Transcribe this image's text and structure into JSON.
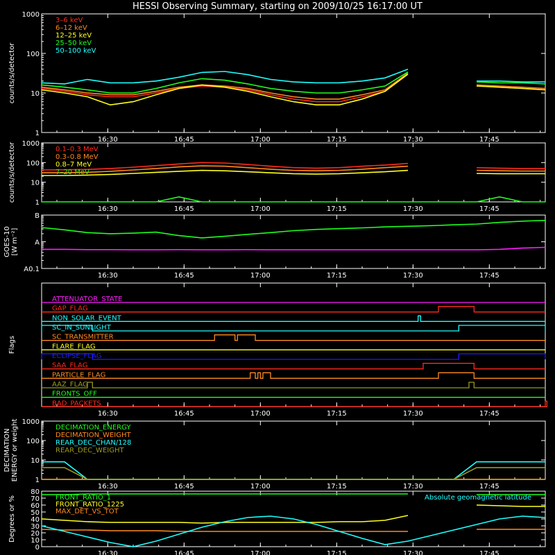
{
  "title": "HESSI Observing Summary, starting on 2009/10/25 16:17:00 UT",
  "time_ticks": [
    "16:30",
    "16:45",
    "17:00",
    "17:15",
    "17:30",
    "17:45"
  ],
  "colors": {
    "bg": "#000000",
    "axis": "#ffffff",
    "red": "#ff2a1a",
    "orange": "#ff8a1e",
    "yellow": "#ffff1e",
    "green": "#1eff1e",
    "cyan": "#1effff",
    "magenta": "#ff1eff",
    "blue": "#1e1eff",
    "olive": "#9a9a1e"
  },
  "chart_data": [
    {
      "name": "low-energy-rates",
      "type": "line",
      "ylabel": "counts/s/detector",
      "ylog": true,
      "ylim": [
        1,
        1000
      ],
      "yticks": [
        "1",
        "10",
        "100",
        "1000"
      ],
      "time_range": [
        "16:17:00",
        "17:56:00"
      ],
      "gap": [
        "17:35",
        "17:42"
      ],
      "series": [
        {
          "name": "3–6 keV",
          "color": "#ff2a1a",
          "values": [
            13,
            11,
            9,
            8,
            8,
            10,
            13,
            15,
            14,
            12,
            9,
            7,
            6,
            6,
            8,
            11,
            30,
            null,
            null,
            15,
            14,
            13,
            12
          ]
        },
        {
          "name": "6–12 keV",
          "color": "#ff8a1e",
          "values": [
            14,
            12,
            10,
            9,
            9,
            11,
            14,
            16,
            15,
            13,
            10,
            8,
            7,
            7,
            9,
            12,
            32,
            null,
            null,
            16,
            15,
            14,
            13
          ]
        },
        {
          "name": "12–25 keV",
          "color": "#ffff1e",
          "values": [
            12,
            10,
            8,
            5,
            6,
            9,
            13,
            16,
            14,
            11,
            8,
            6,
            5,
            5,
            7,
            11,
            30,
            null,
            null,
            15,
            14,
            13,
            12
          ]
        },
        {
          "name": "25–50 keV",
          "color": "#1eff1e",
          "values": [
            16,
            14,
            12,
            10,
            10,
            13,
            18,
            23,
            21,
            17,
            13,
            11,
            10,
            10,
            12,
            15,
            34,
            null,
            null,
            19,
            18,
            18,
            17
          ]
        },
        {
          "name": "50–100 keV",
          "color": "#1effff",
          "values": [
            18,
            17,
            22,
            18,
            18,
            20,
            25,
            33,
            35,
            29,
            22,
            19,
            18,
            18,
            20,
            24,
            40,
            null,
            null,
            20,
            20,
            19,
            19
          ]
        }
      ]
    },
    {
      "name": "high-energy-rates",
      "type": "line",
      "ylabel": "counts/s/detector",
      "ylog": true,
      "ylim": [
        1,
        1000
      ],
      "yticks": [
        "1",
        "10",
        "100",
        "1000"
      ],
      "time_range": [
        "16:17:00",
        "17:56:00"
      ],
      "gap": [
        "17:35",
        "17:42"
      ],
      "series": [
        {
          "name": "0.1–0.3 MeV",
          "color": "#ff2a1a",
          "values": [
            42,
            43,
            45,
            50,
            58,
            70,
            85,
            100,
            95,
            80,
            65,
            55,
            52,
            55,
            65,
            75,
            90,
            null,
            null,
            55,
            52,
            50,
            50
          ]
        },
        {
          "name": "0.3–0.8 MeV",
          "color": "#ff8a1e",
          "values": [
            30,
            30,
            32,
            36,
            42,
            50,
            60,
            68,
            65,
            55,
            46,
            40,
            38,
            40,
            46,
            55,
            65,
            null,
            null,
            40,
            38,
            37,
            37
          ]
        },
        {
          "name": "0.8–7 MeV",
          "color": "#ffff1e",
          "values": [
            22,
            22,
            23,
            25,
            28,
            32,
            36,
            40,
            38,
            34,
            30,
            27,
            26,
            27,
            30,
            34,
            40,
            null,
            null,
            28,
            27,
            27,
            27
          ]
        },
        {
          "name": "7–20 MeV",
          "color": "#1eff1e",
          "values": [
            1,
            1,
            1,
            1,
            1,
            1,
            1.8,
            1,
            1,
            1,
            1,
            1,
            1,
            1,
            1,
            1,
            1,
            1,
            1,
            1,
            1.8,
            1,
            1
          ]
        }
      ]
    },
    {
      "name": "goes",
      "type": "line",
      "ylabel": "GOES-10",
      "ylabel2": "[W m⁻²]",
      "ylog": true,
      "ylim": [
        0.1,
        10
      ],
      "yticks": [
        "A0.1",
        "A",
        "B"
      ],
      "time_range": [
        "16:17:00",
        "17:56:00"
      ],
      "series": [
        {
          "name": "GOES long",
          "color": "#1eff1e",
          "values": [
            3.4,
            2.8,
            2.2,
            2.0,
            2.1,
            2.3,
            1.7,
            1.4,
            1.6,
            1.9,
            2.2,
            2.6,
            2.9,
            3.1,
            3.3,
            3.6,
            3.8,
            4.0,
            4.3,
            4.6,
            5.3,
            5.9,
            6.3
          ]
        },
        {
          "name": "GOES short",
          "color": "#ff1eff",
          "values": [
            0.52,
            0.52,
            0.51,
            0.51,
            0.5,
            0.5,
            0.51,
            0.5,
            0.5,
            0.51,
            0.5,
            0.5,
            0.5,
            0.5,
            0.5,
            0.5,
            0.5,
            0.5,
            0.5,
            0.5,
            0.52,
            0.58,
            0.62
          ]
        }
      ]
    },
    {
      "name": "flags",
      "type": "line",
      "ylabel": "Flags",
      "time_range": [
        "16:17:00",
        "17:56:00"
      ],
      "series": [
        {
          "name": "ATTENUATOR_STATE",
          "color": "#ff1eff",
          "on": []
        },
        {
          "name": "GAP_FLAG",
          "color": "#ff2a1a",
          "on": [
            [
              "17:35",
              "17:42"
            ]
          ]
        },
        {
          "name": "NON_SOLAR_EVENT",
          "color": "#1effff",
          "on": [
            [
              "17:31",
              "17:31:30"
            ]
          ]
        },
        {
          "name": "SC_IN_SUNLIGHT",
          "color": "#1effff",
          "on": [
            [
              "16:17",
              "16:27"
            ],
            [
              "17:39",
              "17:56"
            ]
          ]
        },
        {
          "name": "SC_TRANSMITTER",
          "color": "#ff8a1e",
          "on": [
            [
              "16:51",
              "16:55"
            ],
            [
              "16:55:30",
              "16:59"
            ]
          ]
        },
        {
          "name": "FLARE_FLAG",
          "color": "#ffff1e",
          "on": []
        },
        {
          "name": "ECLIPSE_FLAG",
          "color": "#1e1eff",
          "on": [
            [
              "16:17",
              "16:27"
            ],
            [
              "17:39",
              "17:56"
            ]
          ]
        },
        {
          "name": "SAA_FLAG",
          "color": "#ff2a1a",
          "on": [
            [
              "17:32",
              "17:42"
            ]
          ]
        },
        {
          "name": "PARTICLE_FLAG",
          "color": "#ff8a1e",
          "on": [
            [
              "16:58",
              "16:59"
            ],
            [
              "16:59:30",
              "17:00"
            ],
            [
              "17:00:30",
              "17:02"
            ],
            [
              "17:35",
              "17:42"
            ]
          ]
        },
        {
          "name": "AAZ_FLAG",
          "color": "#9a9a1e",
          "on": [
            [
              "16:26",
              "16:27"
            ],
            [
              "17:41",
              "17:42"
            ]
          ]
        },
        {
          "name": "FRONTS_OFF",
          "color": "#1eff1e",
          "on": []
        },
        {
          "name": "BAD_PACKETS",
          "color": "#ff2a1a",
          "on": [
            [
              "17:56",
              "17:56:20"
            ]
          ]
        }
      ]
    },
    {
      "name": "decimation",
      "type": "line",
      "ylabel": "DECIMATION",
      "ylabel2": "ENERGY or weight",
      "ylog": true,
      "ylim": [
        1,
        1000
      ],
      "yticks": [
        "1",
        "10",
        "100",
        "1000"
      ],
      "time_range": [
        "16:17:00",
        "17:56:00"
      ],
      "series": [
        {
          "name": "DECIMATION_ENERGY",
          "color": "#1eff1e",
          "values": [
            1,
            1,
            1,
            1,
            1,
            1,
            1,
            1,
            1,
            1,
            1,
            1,
            1,
            1,
            1,
            1,
            1,
            1,
            1,
            1,
            1,
            1,
            1
          ]
        },
        {
          "name": "DECIMATION_WEIGHT",
          "color": "#ff8a1e",
          "values": [
            1,
            1,
            1,
            1,
            1,
            1,
            1,
            1,
            1,
            1,
            1,
            1,
            1,
            1,
            1,
            1,
            1,
            1,
            1,
            1,
            1,
            1,
            1
          ]
        },
        {
          "name": "REAR_DEC_CHAN/128",
          "color": "#1effff",
          "values": [
            8,
            8,
            1,
            1,
            1,
            1,
            1,
            1,
            1,
            1,
            1,
            1,
            1,
            1,
            1,
            1,
            1,
            1,
            1,
            8,
            8,
            8,
            8
          ]
        },
        {
          "name": "REAR_DEC_WEIGHT",
          "color": "#9a9a1e",
          "values": [
            4,
            4,
            1,
            1,
            1,
            1,
            1,
            1,
            1,
            1,
            1,
            1,
            1,
            1,
            1,
            1,
            1,
            1,
            1,
            4,
            4,
            4,
            4
          ]
        }
      ]
    },
    {
      "name": "ratios",
      "type": "line",
      "ylabel": "Degrees or %",
      "ylim": [
        0,
        80
      ],
      "yticks": [
        "0",
        "10",
        "20",
        "30",
        "40",
        "50",
        "60",
        "70",
        "80"
      ],
      "time_range": [
        "16:17:00",
        "17:56:00"
      ],
      "series": [
        {
          "name": "FRONT_RATIO_1",
          "color": "#1eff1e",
          "values": [
            75,
            75,
            76,
            76,
            76,
            76,
            76,
            76,
            76,
            76,
            76,
            76,
            76,
            76,
            76,
            76,
            76,
            null,
            null,
            75,
            75,
            75,
            75
          ]
        },
        {
          "name": "FRONT_RATIO_1225",
          "color": "#ffff1e",
          "values": [
            40,
            38,
            36,
            35,
            35,
            35,
            35,
            34,
            35,
            35,
            35,
            35,
            35,
            36,
            36,
            38,
            45,
            null,
            null,
            60,
            59,
            58,
            58
          ]
        },
        {
          "name": "MAX_DET_VS_TOT",
          "color": "#ff8a1e",
          "values": [
            25,
            24,
            24,
            23,
            23,
            23,
            22,
            22,
            22,
            22,
            22,
            22,
            22,
            22,
            22,
            22,
            22,
            null,
            null,
            25,
            25,
            25,
            25
          ]
        },
        {
          "name": "Absolute geomagnetic latitude",
          "color": "#1effff",
          "values": [
            30,
            22,
            14,
            6,
            0,
            8,
            18,
            28,
            36,
            42,
            44,
            40,
            32,
            22,
            12,
            3,
            8,
            16,
            24,
            32,
            40,
            44,
            42
          ]
        }
      ]
    }
  ]
}
